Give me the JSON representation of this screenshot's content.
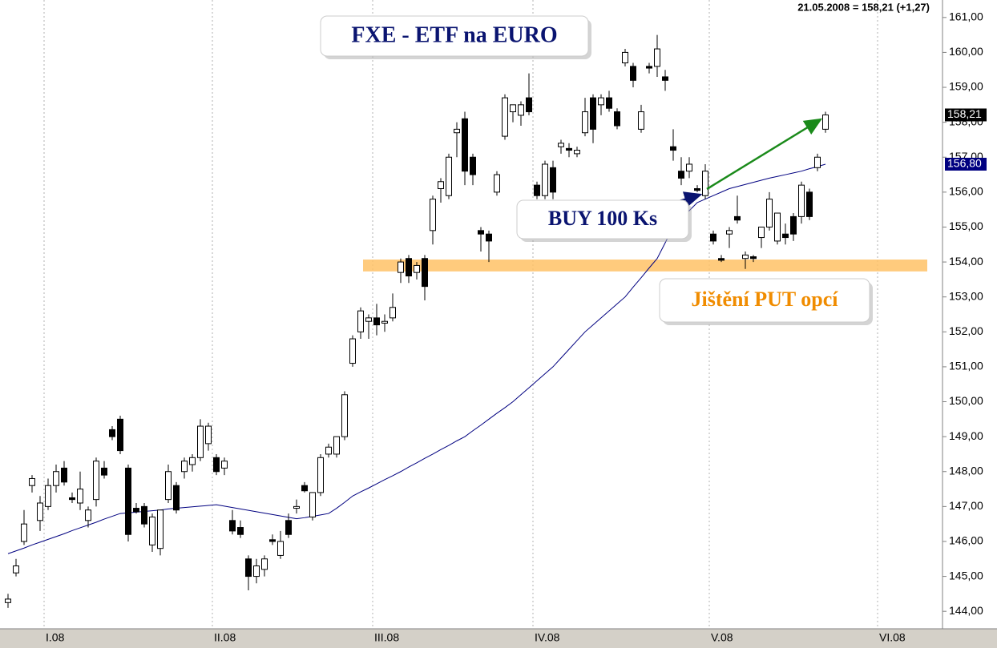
{
  "chart_data": {
    "type": "candlestick",
    "last_quote": "21.05.2008 = 158,21 (+1,27)",
    "title": "FXE - ETF na EURO",
    "annotations": [
      "BUY 100 Ks",
      "Jištění PUT opcí"
    ],
    "hedge_band": [
      153.73,
      154.07
    ],
    "ylim": [
      143.5,
      161.5
    ],
    "yticks": [
      {
        "value": 144,
        "label": "144,00"
      },
      {
        "value": 145,
        "label": "145,00"
      },
      {
        "value": 146,
        "label": "146,00"
      },
      {
        "value": 147,
        "label": "147,00"
      },
      {
        "value": 148,
        "label": "148,00"
      },
      {
        "value": 149,
        "label": "149,00"
      },
      {
        "value": 150,
        "label": "150,00"
      },
      {
        "value": 151,
        "label": "151,00"
      },
      {
        "value": 152,
        "label": "152,00"
      },
      {
        "value": 153,
        "label": "153,00"
      },
      {
        "value": 154,
        "label": "154,00"
      },
      {
        "value": 155,
        "label": "155,00"
      },
      {
        "value": 156,
        "label": "156,00"
      },
      {
        "value": 157,
        "label": "157,00"
      },
      {
        "value": 158,
        "label": "158,00"
      },
      {
        "value": 159,
        "label": "159,00"
      },
      {
        "value": 160,
        "label": "160,00"
      },
      {
        "value": 161,
        "label": "161,00"
      }
    ],
    "last_price": {
      "value": 158.21,
      "label": "158,21"
    },
    "ma_last": {
      "value": 156.8,
      "label": "156,80"
    },
    "categories": [
      null,
      null,
      null,
      null,
      null,
      "I.08",
      null,
      null,
      null,
      null,
      null,
      null,
      null,
      null,
      null,
      null,
      null,
      null,
      null,
      null,
      null,
      null,
      null,
      null,
      null,
      null,
      "II.08",
      null,
      null,
      null,
      null,
      null,
      null,
      null,
      null,
      null,
      null,
      null,
      null,
      null,
      null,
      null,
      null,
      null,
      null,
      null,
      "III.08",
      null,
      null,
      null,
      null,
      null,
      null,
      null,
      null,
      null,
      null,
      null,
      null,
      null,
      null,
      null,
      null,
      null,
      null,
      null,
      "IV.08",
      null,
      null,
      null,
      null,
      null,
      null,
      null,
      null,
      null,
      null,
      null,
      null,
      null,
      null,
      null,
      null,
      null,
      null,
      null,
      null,
      null,
      "V.08",
      null,
      null,
      null,
      null,
      null,
      null,
      null,
      null,
      null,
      null,
      null,
      null,
      null,
      null,
      null,
      null,
      null,
      null,
      null,
      null,
      "VI.08"
    ],
    "open": [
      144.25,
      145.1,
      146.0,
      147.6,
      146.6,
      147.0,
      147.6,
      148.1,
      147.25,
      147.1,
      146.6,
      147.2,
      148.1,
      149.2,
      149.5,
      148.1,
      146.95,
      147.0,
      145.9,
      145.8,
      147.2,
      147.6,
      148.0,
      148.2,
      148.4,
      148.8,
      148.4,
      148.1,
      146.6,
      146.4,
      145.5,
      145.0,
      145.2,
      146.05,
      145.6,
      146.6,
      146.95,
      147.6,
      146.7,
      147.4,
      148.5,
      148.5,
      149.0,
      151.1,
      152.0,
      152.3,
      152.4,
      152.25,
      152.4,
      153.7,
      154.1,
      153.7,
      154.1,
      154.9,
      156.1,
      155.9,
      157.7,
      158.1,
      157.0,
      154.9,
      154.8,
      156.0,
      157.6,
      158.3,
      158.2,
      158.7,
      156.2,
      155.9,
      156.7,
      157.3,
      157.25,
      157.1,
      157.7,
      158.7,
      158.5,
      158.7,
      158.3,
      159.7,
      159.6,
      157.8,
      159.6,
      159.6,
      159.3,
      157.3,
      156.6,
      156.6,
      156.1,
      155.9,
      154.8,
      154.1,
      154.8,
      155.3,
      154.1,
      154.15,
      154.7,
      155.0,
      154.6,
      154.8,
      155.3,
      155.3,
      156.0,
      156.7,
      157.8,
      null,
      null,
      null,
      null,
      null,
      null,
      null
    ],
    "high": [
      144.5,
      145.5,
      146.9,
      147.9,
      147.3,
      147.8,
      148.2,
      148.3,
      147.4,
      148.0,
      147.0,
      148.4,
      148.3,
      149.3,
      149.6,
      148.2,
      147.1,
      147.1,
      146.8,
      146.9,
      148.2,
      147.7,
      148.4,
      148.5,
      149.5,
      149.4,
      148.5,
      148.4,
      146.9,
      146.6,
      145.6,
      145.5,
      145.6,
      146.2,
      146.3,
      146.8,
      147.2,
      147.7,
      147.4,
      148.5,
      148.8,
      149.0,
      150.3,
      151.9,
      152.7,
      152.5,
      152.8,
      152.5,
      153.1,
      154.1,
      154.2,
      154.0,
      154.2,
      155.9,
      156.4,
      157.1,
      158.0,
      158.3,
      157.1,
      155.0,
      154.9,
      156.6,
      158.8,
      158.5,
      158.6,
      159.4,
      156.3,
      156.9,
      156.9,
      157.5,
      157.4,
      157.3,
      158.7,
      158.8,
      158.8,
      158.9,
      158.4,
      160.1,
      159.7,
      158.5,
      159.7,
      160.5,
      159.5,
      157.8,
      157.0,
      157.0,
      156.2,
      156.8,
      154.9,
      154.2,
      155.0,
      155.9,
      154.3,
      154.2,
      155.0,
      156.0,
      155.4,
      155.1,
      155.4,
      156.3,
      156.1,
      157.1,
      158.3,
      null,
      null,
      null,
      null,
      null,
      null,
      null
    ],
    "low": [
      144.1,
      145.0,
      145.9,
      147.4,
      146.3,
      146.9,
      147.4,
      147.6,
      147.1,
      146.9,
      146.4,
      147.0,
      147.8,
      148.9,
      148.5,
      146.0,
      146.8,
      146.4,
      145.7,
      145.6,
      147.1,
      146.8,
      147.8,
      148.0,
      148.3,
      148.6,
      147.9,
      147.9,
      146.2,
      146.1,
      144.6,
      144.8,
      145.0,
      145.9,
      145.5,
      146.1,
      146.8,
      147.4,
      146.6,
      147.3,
      148.4,
      148.4,
      148.9,
      151.0,
      151.8,
      151.8,
      151.9,
      152.0,
      152.3,
      153.4,
      153.4,
      153.5,
      152.9,
      154.5,
      155.7,
      155.8,
      157.0,
      156.2,
      156.2,
      154.3,
      154.0,
      155.9,
      157.5,
      158.0,
      157.9,
      158.2,
      155.8,
      155.8,
      155.8,
      157.1,
      157.0,
      157.0,
      157.6,
      157.4,
      158.2,
      158.3,
      157.8,
      159.6,
      159.0,
      157.7,
      159.4,
      159.3,
      158.9,
      156.9,
      156.2,
      156.4,
      156.0,
      155.8,
      154.5,
      154.0,
      154.4,
      155.1,
      153.8,
      154.0,
      154.4,
      154.9,
      154.5,
      154.5,
      154.6,
      155.1,
      155.2,
      156.6,
      157.7,
      null,
      null,
      null,
      null,
      null,
      null,
      null
    ],
    "close": [
      144.35,
      145.3,
      146.5,
      147.8,
      147.1,
      147.6,
      148.0,
      147.7,
      147.2,
      147.5,
      146.9,
      148.3,
      147.9,
      149.0,
      148.6,
      146.2,
      146.85,
      146.5,
      146.7,
      146.9,
      148.0,
      146.9,
      148.3,
      148.4,
      149.3,
      149.3,
      148.0,
      148.3,
      146.3,
      146.2,
      145.0,
      145.3,
      145.5,
      146.0,
      146.0,
      146.2,
      147.0,
      147.45,
      147.4,
      148.4,
      148.7,
      149.0,
      150.2,
      151.8,
      152.6,
      152.4,
      152.2,
      152.3,
      152.7,
      154.0,
      153.6,
      153.9,
      153.3,
      155.8,
      156.3,
      157.0,
      157.8,
      156.6,
      156.5,
      154.8,
      154.6,
      156.5,
      158.7,
      158.5,
      158.5,
      158.3,
      155.9,
      156.8,
      156.0,
      157.4,
      157.2,
      157.2,
      158.3,
      157.8,
      158.7,
      158.4,
      157.9,
      160.0,
      159.2,
      158.3,
      159.55,
      160.1,
      159.2,
      157.2,
      156.4,
      156.8,
      156.05,
      156.6,
      154.6,
      154.05,
      154.9,
      155.2,
      154.2,
      154.1,
      155.0,
      155.8,
      155.4,
      154.7,
      154.8,
      156.2,
      155.3,
      157.0,
      158.21,
      null,
      null,
      null,
      null,
      null,
      null,
      null
    ],
    "moving_average": [
      145.65,
      145.73,
      145.81,
      145.9,
      145.98,
      146.06,
      146.14,
      146.22,
      146.31,
      146.39,
      146.47,
      146.55,
      146.64,
      146.72,
      146.8,
      146.82,
      146.84,
      146.86,
      146.88,
      146.9,
      146.93,
      146.95,
      146.97,
      146.99,
      147.01,
      147.03,
      147.05,
      147.01,
      146.97,
      146.93,
      146.89,
      146.85,
      146.81,
      146.77,
      146.73,
      146.69,
      146.65,
      146.68,
      146.72,
      146.76,
      146.8,
      146.95,
      147.12,
      147.3,
      147.42,
      147.53,
      147.65,
      147.77,
      147.88,
      148.0,
      148.13,
      148.25,
      148.38,
      148.5,
      148.63,
      148.75,
      148.88,
      149.0,
      149.17,
      149.33,
      149.5,
      149.67,
      149.83,
      150.0,
      150.2,
      150.4,
      150.6,
      150.8,
      151.0,
      151.25,
      151.5,
      151.75,
      152.0,
      152.2,
      152.4,
      152.6,
      152.8,
      153.0,
      153.28,
      153.55,
      153.83,
      154.1,
      154.55,
      155.0,
      155.23,
      155.47,
      155.7,
      155.8,
      155.9,
      156.0,
      156.1,
      156.16,
      156.22,
      156.28,
      156.34,
      156.4,
      156.45,
      156.5,
      156.55,
      156.6,
      156.67,
      156.73,
      156.8,
      null,
      null,
      null,
      null,
      null,
      null,
      null
    ],
    "up_color": "#ffffff",
    "down_color": "#000000",
    "ma_color": "#000080",
    "band_color": "#ffc266",
    "annotation_colors": [
      "#0a1470",
      "#f08c00"
    ],
    "title_color": "#0a1470"
  }
}
